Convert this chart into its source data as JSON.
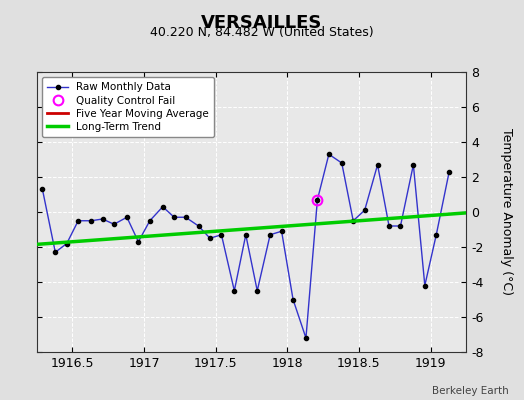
{
  "title": "VERSAILLES",
  "subtitle": "40.220 N, 84.482 W (United States)",
  "ylabel": "Temperature Anomaly (°C)",
  "watermark": "Berkeley Earth",
  "background_color": "#e0e0e0",
  "plot_bg_color": "#e8e8e8",
  "xlim": [
    1916.25,
    1919.25
  ],
  "ylim": [
    -8,
    8
  ],
  "yticks": [
    -8,
    -6,
    -4,
    -2,
    0,
    2,
    4,
    6,
    8
  ],
  "xticks": [
    1916.5,
    1917.0,
    1917.5,
    1918.0,
    1918.5,
    1919.0
  ],
  "xticklabels": [
    "1916.5",
    "1917",
    "1917.5",
    "1918",
    "1918.5",
    "1919"
  ],
  "raw_x": [
    1916.29,
    1916.38,
    1916.46,
    1916.54,
    1916.63,
    1916.71,
    1916.79,
    1916.88,
    1916.96,
    1917.04,
    1917.13,
    1917.21,
    1917.29,
    1917.38,
    1917.46,
    1917.54,
    1917.63,
    1917.71,
    1917.79,
    1917.88,
    1917.96,
    1918.04,
    1918.13,
    1918.21,
    1918.29,
    1918.38,
    1918.46,
    1918.54,
    1918.63,
    1918.71,
    1918.79,
    1918.88,
    1918.96,
    1919.04,
    1919.13
  ],
  "raw_y": [
    1.3,
    -2.3,
    -1.8,
    -0.5,
    -0.5,
    -0.4,
    -0.7,
    -0.3,
    -1.7,
    -0.5,
    0.3,
    -0.3,
    -0.3,
    -0.8,
    -1.5,
    -1.3,
    -4.5,
    -1.3,
    -4.5,
    -1.3,
    -1.1,
    -5.0,
    -7.2,
    0.7,
    3.3,
    2.8,
    -0.5,
    0.1,
    2.7,
    -0.8,
    -0.8,
    2.7,
    -4.2,
    -1.3,
    2.3
  ],
  "qc_fail_x": [
    1918.21
  ],
  "qc_fail_y": [
    0.7
  ],
  "trend_x": [
    1916.25,
    1919.25
  ],
  "trend_y": [
    -1.85,
    -0.05
  ],
  "raw_line_color": "#3333cc",
  "raw_marker_color": "#000000",
  "qc_color": "#ff00ff",
  "trend_color": "#00cc00",
  "ma_color": "#cc0000",
  "legend_bg": "#ffffff",
  "title_fontsize": 13,
  "subtitle_fontsize": 9,
  "tick_fontsize": 9,
  "label_fontsize": 9
}
